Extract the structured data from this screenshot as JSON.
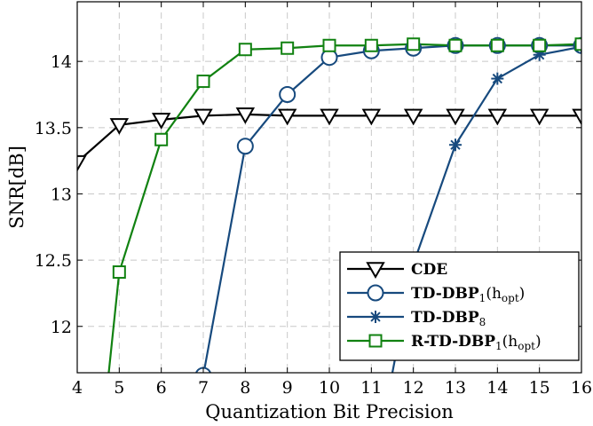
{
  "chart_data": {
    "type": "line",
    "title": "",
    "xlabel": "Quantization Bit Precision",
    "ylabel": "SNR[dB]",
    "xlim": [
      4,
      16
    ],
    "ylim": [
      11.65,
      14.45
    ],
    "xticks": [
      "4",
      "5",
      "6",
      "7",
      "8",
      "9",
      "10",
      "11",
      "12",
      "13",
      "14",
      "15",
      "16"
    ],
    "yticks": [
      "12",
      "12.5",
      "13",
      "13.5",
      "14"
    ],
    "grid": true,
    "legend_position": "bottom-right",
    "series": [
      {
        "name": "CDE",
        "color": "#000000",
        "marker": "triangle-down",
        "x": [
          4,
          5,
          6,
          7,
          8,
          9,
          10,
          11,
          12,
          13,
          14,
          15,
          16
        ],
        "y": [
          13.24,
          13.52,
          13.56,
          13.59,
          13.6,
          13.59,
          13.59,
          13.59,
          13.59,
          13.59,
          13.59,
          13.59,
          13.59
        ]
      },
      {
        "name": "TD-DBP1(hopt)",
        "label_main": "TD-DBP",
        "label_sub": "1",
        "label_paren": "(h",
        "label_paren_sub": "opt",
        "label_close": ")",
        "color": "#174a7e",
        "marker": "circle",
        "x": [
          7,
          8,
          9,
          10,
          11,
          12,
          13,
          14,
          15,
          16
        ],
        "y": [
          11.63,
          13.36,
          13.75,
          14.03,
          14.08,
          14.1,
          14.12,
          14.12,
          14.12,
          14.12
        ]
      },
      {
        "name": "TD-DBP8",
        "label_main": "TD-DBP",
        "label_sub": "8",
        "color": "#174a7e",
        "marker": "asterisk",
        "x": [
          11.5,
          12,
          13,
          14,
          15,
          16
        ],
        "y": [
          11.65,
          12.47,
          13.37,
          13.87,
          14.05,
          14.11
        ]
      },
      {
        "name": "R-TD-DBP1(hopt)",
        "label_main": "R-TD-DBP",
        "label_sub": "1",
        "label_paren": "(h",
        "label_paren_sub": "opt",
        "label_close": ")",
        "color": "#118211",
        "marker": "square",
        "x": [
          4.75,
          5,
          6,
          7,
          8,
          9,
          10,
          11,
          12,
          13,
          14,
          15,
          16
        ],
        "y": [
          11.65,
          12.41,
          13.41,
          13.85,
          14.09,
          14.1,
          14.12,
          14.12,
          14.13,
          14.12,
          14.12,
          14.12,
          14.13
        ]
      }
    ]
  }
}
